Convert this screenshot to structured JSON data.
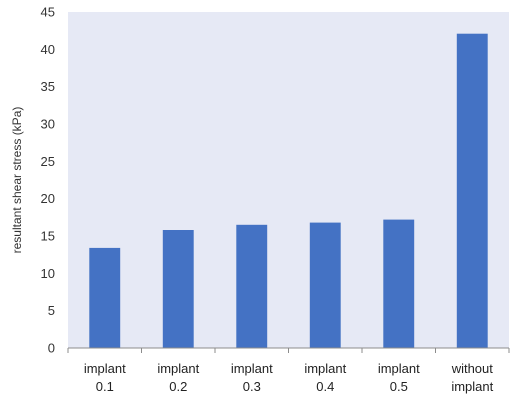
{
  "chart_data": {
    "type": "bar",
    "title": "",
    "xlabel": "",
    "ylabel": "resultant shear stress (kPa)",
    "categories": [
      [
        "implant",
        "0.1"
      ],
      [
        "implant",
        "0.2"
      ],
      [
        "implant",
        "0.3"
      ],
      [
        "implant",
        "0.4"
      ],
      [
        "implant",
        "0.5"
      ],
      [
        "without",
        "implant"
      ]
    ],
    "values": [
      13.4,
      15.8,
      16.5,
      16.8,
      17.2,
      42.1
    ],
    "ylim": [
      0,
      45
    ],
    "yticks": [
      0,
      5,
      10,
      15,
      20,
      25,
      30,
      35,
      40,
      45
    ],
    "grid": false,
    "legend": "none",
    "colors": {
      "bar": "#4472c4",
      "plot_background": "#e6e9f5",
      "axis": "#8c8c8c"
    }
  }
}
